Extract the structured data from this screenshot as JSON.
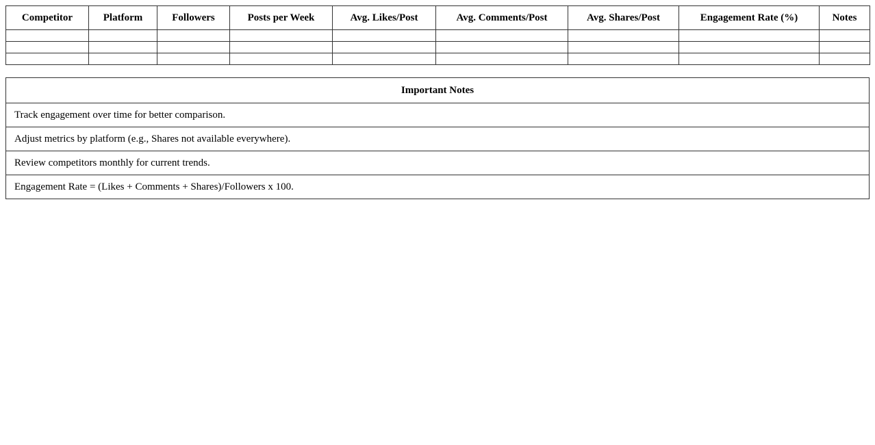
{
  "tracker": {
    "columns": [
      "Competitor",
      "Platform",
      "Followers",
      "Posts per Week",
      "Avg. Likes/Post",
      "Avg. Comments/Post",
      "Avg. Shares/Post",
      "Engagement Rate (%)",
      "Notes"
    ],
    "rows": [
      [
        "",
        "",
        "",
        "",
        "",
        "",
        "",
        "",
        ""
      ],
      [
        "",
        "",
        "",
        "",
        "",
        "",
        "",
        "",
        ""
      ],
      [
        "",
        "",
        "",
        "",
        "",
        "",
        "",
        "",
        ""
      ]
    ]
  },
  "notes": {
    "title": "Important Notes",
    "items": [
      "Track engagement over time for better comparison.",
      "Adjust metrics by platform (e.g., Shares not available everywhere).",
      "Review competitors monthly for current trends.",
      "Engagement Rate = (Likes + Comments + Shares)/Followers x 100."
    ]
  }
}
